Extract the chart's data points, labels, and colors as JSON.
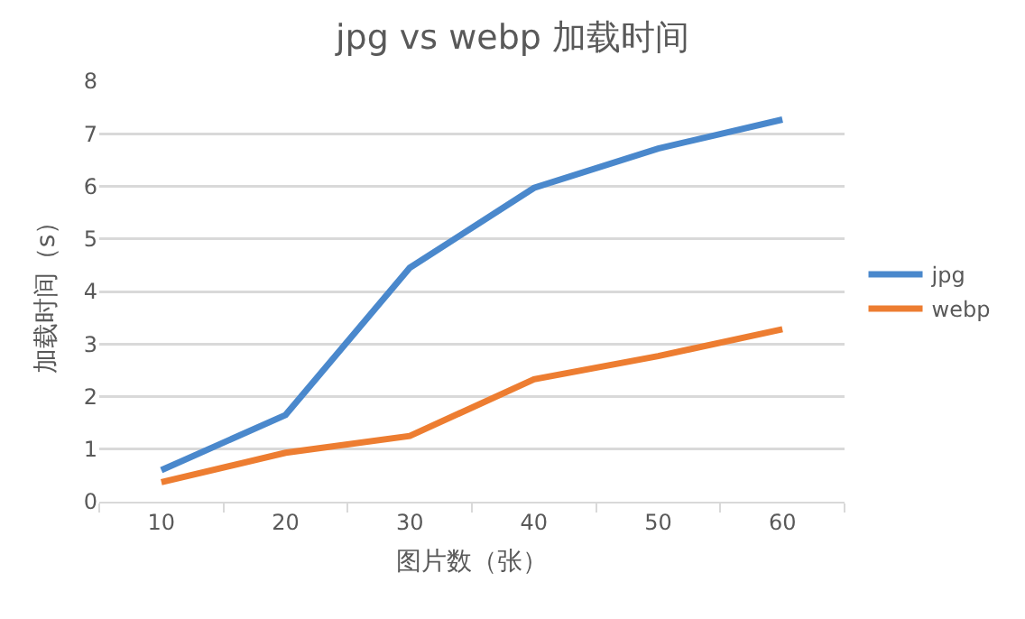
{
  "chart_data": {
    "type": "line",
    "title": "jpg vs webp 加载时间",
    "xlabel": "图片数（张）",
    "ylabel": "加载时间（s）",
    "categories": [
      "10",
      "20",
      "30",
      "40",
      "50",
      "60"
    ],
    "series": [
      {
        "name": "jpg",
        "color": "#4a88cc",
        "values": [
          0.6,
          1.65,
          4.45,
          5.97,
          6.72,
          7.27
        ]
      },
      {
        "name": "webp",
        "color": "#ed7d31",
        "values": [
          0.37,
          0.93,
          1.25,
          2.33,
          2.77,
          3.28
        ]
      }
    ],
    "ylim": [
      0,
      8
    ],
    "yticks": [
      0,
      1,
      2,
      3,
      4,
      5,
      6,
      7,
      8
    ],
    "grid": "y",
    "legend": "right",
    "marker": "none",
    "line_style": "solid"
  }
}
